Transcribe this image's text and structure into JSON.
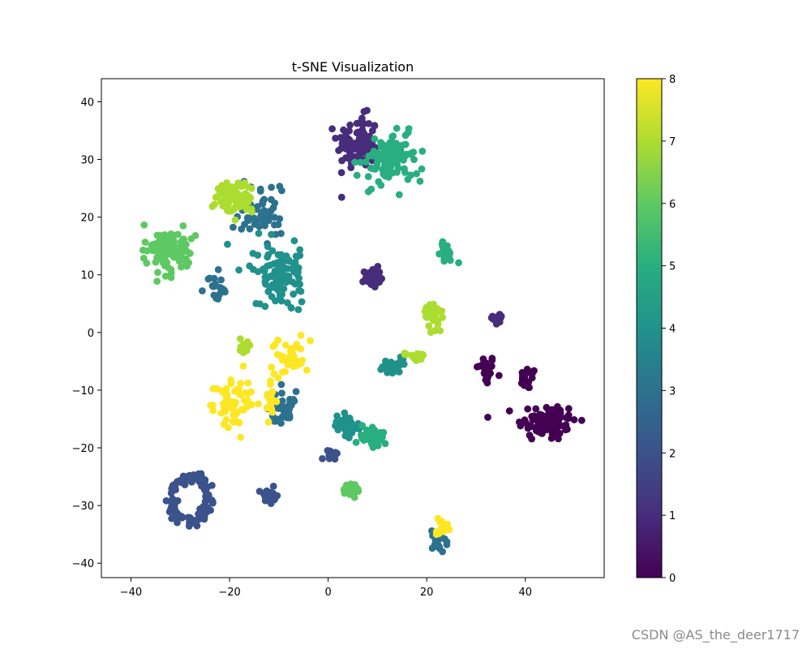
{
  "chart_data": {
    "type": "scatter",
    "title": "t-SNE Visualization",
    "xlabel": "",
    "ylabel": "",
    "xlim": [
      -46,
      56
    ],
    "ylim": [
      -42.5,
      44
    ],
    "x_ticks": [
      -40,
      -20,
      0,
      20,
      40
    ],
    "y_ticks": [
      -40,
      -30,
      -20,
      -10,
      0,
      10,
      20,
      30,
      40
    ],
    "grid": false,
    "colorbar": {
      "min": 0,
      "max": 8,
      "ticks": [
        0,
        1,
        2,
        3,
        4,
        5,
        6,
        7,
        8
      ],
      "colormap": "viridis",
      "stops": [
        "#440154",
        "#472d7b",
        "#3b528b",
        "#2c728e",
        "#21918c",
        "#28ae80",
        "#5ec962",
        "#addc30",
        "#fde725"
      ]
    },
    "clusters": [
      {
        "label": 0,
        "center": [
          32,
          -6.5
        ],
        "spread": [
          1.6,
          2.2
        ],
        "count": 30
      },
      {
        "label": 0,
        "center": [
          40.5,
          -8
        ],
        "spread": [
          1.4,
          1.6
        ],
        "count": 22
      },
      {
        "label": 0,
        "center": [
          44.5,
          -15.5
        ],
        "spread": [
          5,
          2.8
        ],
        "count": 90
      },
      {
        "label": 1,
        "center": [
          6,
          33
        ],
        "spread": [
          3.5,
          3.8
        ],
        "count": 95
      },
      {
        "label": 1,
        "center": [
          9,
          9.5
        ],
        "spread": [
          1.3,
          1.4
        ],
        "count": 40
      },
      {
        "label": 1,
        "center": [
          34.5,
          2.5
        ],
        "spread": [
          0.9,
          1.1
        ],
        "count": 18
      },
      {
        "label": 2,
        "center": [
          -28,
          -29
        ],
        "spread": [
          4,
          3.8
        ],
        "count": 110,
        "shape": "ring"
      },
      {
        "label": 2,
        "center": [
          -12,
          -28.5
        ],
        "spread": [
          1.1,
          1.1
        ],
        "count": 40
      },
      {
        "label": 2,
        "center": [
          0.5,
          -21
        ],
        "spread": [
          1.2,
          0.7
        ],
        "count": 18
      },
      {
        "label": 3,
        "center": [
          -14,
          21
        ],
        "spread": [
          3.5,
          4
        ],
        "count": 55
      },
      {
        "label": 3,
        "center": [
          -23,
          8
        ],
        "spread": [
          2.5,
          2.5
        ],
        "count": 20
      },
      {
        "label": 3,
        "center": [
          -9,
          -13
        ],
        "spread": [
          2,
          2.2
        ],
        "count": 45
      },
      {
        "label": 3,
        "center": [
          22.5,
          -36
        ],
        "spread": [
          1.3,
          1.6
        ],
        "count": 28
      },
      {
        "label": 4,
        "center": [
          -10,
          10
        ],
        "spread": [
          4.5,
          4
        ],
        "count": 110
      },
      {
        "label": 4,
        "center": [
          13,
          -6
        ],
        "spread": [
          2.5,
          1.6
        ],
        "count": 28
      },
      {
        "label": 4,
        "center": [
          4,
          -16
        ],
        "spread": [
          2,
          1.8
        ],
        "count": 35
      },
      {
        "label": 5,
        "center": [
          12.5,
          30
        ],
        "spread": [
          4.5,
          4
        ],
        "count": 110
      },
      {
        "label": 5,
        "center": [
          24,
          14
        ],
        "spread": [
          1.2,
          1.3
        ],
        "count": 28
      },
      {
        "label": 5,
        "center": [
          9,
          -18
        ],
        "spread": [
          2.5,
          1.4
        ],
        "count": 40
      },
      {
        "label": 6,
        "center": [
          -32.5,
          14.5
        ],
        "spread": [
          4.5,
          3
        ],
        "count": 100
      },
      {
        "label": 6,
        "center": [
          4.5,
          -27
        ],
        "spread": [
          1.3,
          1.1
        ],
        "count": 40
      },
      {
        "label": 7,
        "center": [
          -19,
          23.5
        ],
        "spread": [
          3.5,
          2.5
        ],
        "count": 85
      },
      {
        "label": 7,
        "center": [
          21.5,
          3
        ],
        "spread": [
          1.3,
          2.2
        ],
        "count": 35
      },
      {
        "label": 7,
        "center": [
          18,
          -4
        ],
        "spread": [
          1.8,
          0.8
        ],
        "count": 18
      },
      {
        "label": 7,
        "center": [
          -17,
          -2.5
        ],
        "spread": [
          1.2,
          1.2
        ],
        "count": 12
      },
      {
        "label": 8,
        "center": [
          -19,
          -12
        ],
        "spread": [
          3.5,
          3.2
        ],
        "count": 60
      },
      {
        "label": 8,
        "center": [
          -7.5,
          -4
        ],
        "spread": [
          2.5,
          3
        ],
        "count": 40
      },
      {
        "label": 8,
        "center": [
          23,
          -34
        ],
        "spread": [
          1.1,
          1.3
        ],
        "count": 22
      },
      {
        "label": 8,
        "center": [
          -11.5,
          -12
        ],
        "spread": [
          1.2,
          3
        ],
        "count": 18
      }
    ]
  },
  "watermark": "CSDN @AS_the_deer1717"
}
